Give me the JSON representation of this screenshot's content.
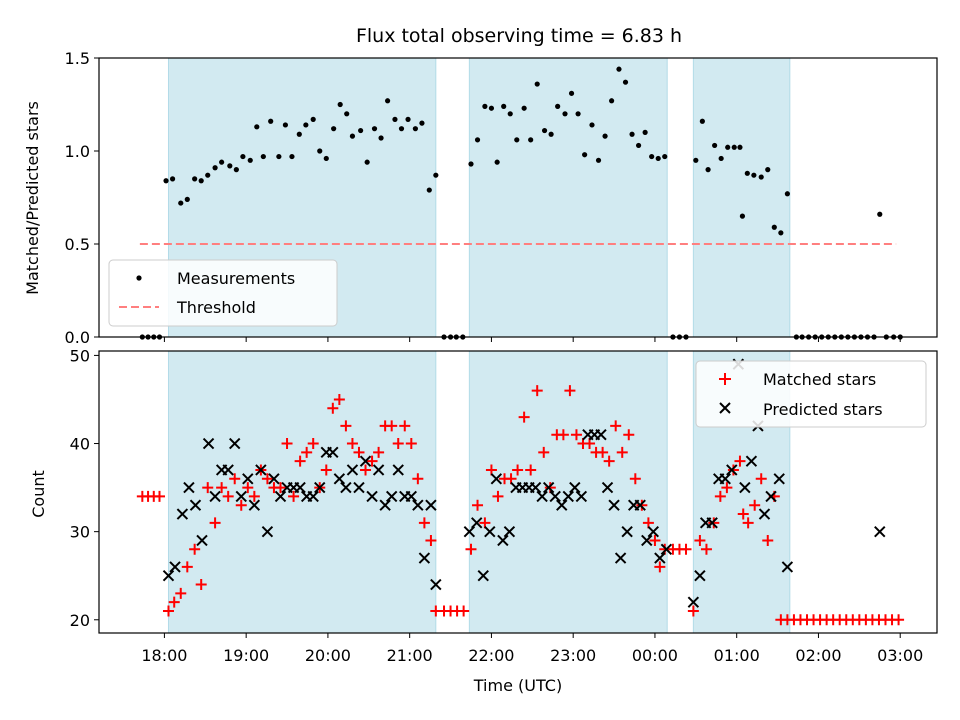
{
  "chart_data": {
    "type": "scatter",
    "title": "Flux total observing time = 6.83 h",
    "xlabel": "Time (UTC)",
    "x_ticks": [
      "18:00",
      "19:00",
      "20:00",
      "21:00",
      "22:00",
      "23:00",
      "00:00",
      "01:00",
      "02:00",
      "03:00"
    ],
    "x_ticks_hours": [
      18,
      19,
      20,
      21,
      22,
      23,
      24,
      25,
      26,
      27
    ],
    "xlim_hours": [
      17.2,
      27.45
    ],
    "shaded_intervals_hours": [
      [
        18.05,
        21.32
      ],
      [
        21.73,
        24.15
      ],
      [
        24.47,
        25.65
      ]
    ],
    "colors": {
      "shading": "#add8e6",
      "matched": "#ff0000",
      "predicted": "#000000",
      "threshold": "#ff7f7f",
      "measurements": "#000000"
    },
    "top": {
      "ylabel": "Matched/Predicted stars",
      "ylim": [
        0,
        1.5
      ],
      "y_ticks": [
        "0.0",
        "0.5",
        "1.0",
        "1.5"
      ],
      "y_tick_values": [
        0,
        0.5,
        1.0,
        1.5
      ],
      "threshold": {
        "value": 0.5,
        "x_range_hours": [
          17.7,
          26.95
        ]
      },
      "legend": [
        "Measurements",
        "Threshold"
      ],
      "legend_position": "lower left",
      "measurements": [
        [
          17.73,
          0
        ],
        [
          17.8,
          0
        ],
        [
          17.87,
          0
        ],
        [
          17.94,
          0
        ],
        [
          18.02,
          0.84
        ],
        [
          18.1,
          0.85
        ],
        [
          18.2,
          0.72
        ],
        [
          18.28,
          0.74
        ],
        [
          18.37,
          0.85
        ],
        [
          18.45,
          0.84
        ],
        [
          18.53,
          0.87
        ],
        [
          18.62,
          0.91
        ],
        [
          18.7,
          0.94
        ],
        [
          18.8,
          0.92
        ],
        [
          18.88,
          0.9
        ],
        [
          18.96,
          0.97
        ],
        [
          19.05,
          0.95
        ],
        [
          19.13,
          1.13
        ],
        [
          19.21,
          0.97
        ],
        [
          19.3,
          1.16
        ],
        [
          19.4,
          0.97
        ],
        [
          19.48,
          1.14
        ],
        [
          19.56,
          0.97
        ],
        [
          19.65,
          1.09
        ],
        [
          19.73,
          1.14
        ],
        [
          19.82,
          1.17
        ],
        [
          19.9,
          1.0
        ],
        [
          19.98,
          0.96
        ],
        [
          20.07,
          1.12
        ],
        [
          20.15,
          1.25
        ],
        [
          20.23,
          1.2
        ],
        [
          20.3,
          1.08
        ],
        [
          20.4,
          1.11
        ],
        [
          20.48,
          0.94
        ],
        [
          20.57,
          1.12
        ],
        [
          20.65,
          1.07
        ],
        [
          20.73,
          1.27
        ],
        [
          20.82,
          1.17
        ],
        [
          20.9,
          1.12
        ],
        [
          20.98,
          1.17
        ],
        [
          21.07,
          1.12
        ],
        [
          21.15,
          1.15
        ],
        [
          21.24,
          0.79
        ],
        [
          21.32,
          0.87
        ],
        [
          21.42,
          0
        ],
        [
          21.5,
          0
        ],
        [
          21.57,
          0
        ],
        [
          21.65,
          0
        ],
        [
          21.75,
          0.93
        ],
        [
          21.83,
          1.06
        ],
        [
          21.92,
          1.24
        ],
        [
          22.0,
          1.23
        ],
        [
          22.07,
          0.94
        ],
        [
          22.15,
          1.24
        ],
        [
          22.23,
          1.2
        ],
        [
          22.31,
          1.06
        ],
        [
          22.4,
          1.23
        ],
        [
          22.48,
          1.06
        ],
        [
          22.56,
          1.36
        ],
        [
          22.65,
          1.11
        ],
        [
          22.73,
          1.09
        ],
        [
          22.81,
          1.24
        ],
        [
          22.9,
          1.2
        ],
        [
          22.98,
          1.31
        ],
        [
          23.06,
          1.2
        ],
        [
          23.14,
          0.98
        ],
        [
          23.23,
          1.14
        ],
        [
          23.31,
          0.95
        ],
        [
          23.39,
          1.08
        ],
        [
          23.47,
          1.27
        ],
        [
          23.56,
          1.44
        ],
        [
          23.64,
          1.37
        ],
        [
          23.72,
          1.09
        ],
        [
          23.8,
          1.03
        ],
        [
          23.88,
          1.1
        ],
        [
          23.96,
          0.97
        ],
        [
          24.04,
          0.96
        ],
        [
          24.12,
          0.97
        ],
        [
          24.22,
          0
        ],
        [
          24.3,
          0
        ],
        [
          24.38,
          0
        ],
        [
          24.5,
          0.95
        ],
        [
          24.58,
          1.16
        ],
        [
          24.65,
          0.9
        ],
        [
          24.73,
          1.03
        ],
        [
          24.81,
          0.96
        ],
        [
          24.89,
          1.02
        ],
        [
          24.97,
          1.02
        ],
        [
          25.04,
          1.02
        ],
        [
          25.07,
          0.65
        ],
        [
          25.13,
          0.88
        ],
        [
          25.21,
          0.87
        ],
        [
          25.3,
          0.86
        ],
        [
          25.38,
          0.9
        ],
        [
          25.46,
          0.59
        ],
        [
          25.54,
          0.56
        ],
        [
          25.62,
          0.77
        ],
        [
          25.73,
          0
        ],
        [
          25.8,
          0
        ],
        [
          25.88,
          0
        ],
        [
          25.96,
          0
        ],
        [
          26.04,
          0
        ],
        [
          26.12,
          0
        ],
        [
          26.2,
          0
        ],
        [
          26.28,
          0
        ],
        [
          26.36,
          0
        ],
        [
          26.44,
          0
        ],
        [
          26.52,
          0
        ],
        [
          26.6,
          0
        ],
        [
          26.68,
          0
        ],
        [
          26.75,
          0.66
        ],
        [
          26.83,
          0
        ],
        [
          26.92,
          0
        ],
        [
          27.0,
          0
        ]
      ]
    },
    "bottom": {
      "ylabel": "Count",
      "ylim": [
        18.5,
        50.5
      ],
      "y_ticks": [
        "20",
        "30",
        "40",
        "50"
      ],
      "y_tick_values": [
        20,
        30,
        40,
        50
      ],
      "legend": [
        "Matched stars",
        "Predicted stars"
      ],
      "legend_position": "upper right",
      "matched": [
        [
          17.73,
          34
        ],
        [
          17.8,
          34
        ],
        [
          17.87,
          34
        ],
        [
          17.94,
          34
        ],
        [
          18.05,
          21
        ],
        [
          18.12,
          22
        ],
        [
          18.2,
          23
        ],
        [
          18.28,
          26
        ],
        [
          18.37,
          28
        ],
        [
          18.45,
          24
        ],
        [
          18.53,
          35
        ],
        [
          18.62,
          31
        ],
        [
          18.7,
          35
        ],
        [
          18.78,
          34
        ],
        [
          18.86,
          36
        ],
        [
          18.94,
          33
        ],
        [
          19.02,
          35
        ],
        [
          19.1,
          34
        ],
        [
          19.18,
          37
        ],
        [
          19.26,
          36
        ],
        [
          19.34,
          35
        ],
        [
          19.42,
          35
        ],
        [
          19.5,
          40
        ],
        [
          19.58,
          34
        ],
        [
          19.66,
          38
        ],
        [
          19.74,
          39
        ],
        [
          19.82,
          40
        ],
        [
          19.9,
          35
        ],
        [
          19.98,
          37
        ],
        [
          20.06,
          44
        ],
        [
          20.14,
          45
        ],
        [
          20.22,
          42
        ],
        [
          20.3,
          40
        ],
        [
          20.38,
          39
        ],
        [
          20.46,
          37
        ],
        [
          20.54,
          38
        ],
        [
          20.62,
          39
        ],
        [
          20.7,
          42
        ],
        [
          20.78,
          42
        ],
        [
          20.86,
          40
        ],
        [
          20.94,
          42
        ],
        [
          21.02,
          40
        ],
        [
          21.1,
          36
        ],
        [
          21.18,
          31
        ],
        [
          21.26,
          29
        ],
        [
          21.32,
          21
        ],
        [
          21.42,
          21
        ],
        [
          21.5,
          21
        ],
        [
          21.58,
          21
        ],
        [
          21.66,
          21
        ],
        [
          21.75,
          28
        ],
        [
          21.83,
          33
        ],
        [
          21.92,
          31
        ],
        [
          22.0,
          37
        ],
        [
          22.08,
          34
        ],
        [
          22.16,
          36
        ],
        [
          22.24,
          36
        ],
        [
          22.32,
          37
        ],
        [
          22.4,
          43
        ],
        [
          22.48,
          37
        ],
        [
          22.56,
          46
        ],
        [
          22.64,
          39
        ],
        [
          22.72,
          35
        ],
        [
          22.8,
          41
        ],
        [
          22.88,
          41
        ],
        [
          22.96,
          46
        ],
        [
          23.04,
          41
        ],
        [
          23.12,
          40
        ],
        [
          23.2,
          40
        ],
        [
          23.28,
          39
        ],
        [
          23.36,
          39
        ],
        [
          23.44,
          38
        ],
        [
          23.52,
          42
        ],
        [
          23.6,
          39
        ],
        [
          23.68,
          41
        ],
        [
          23.76,
          36
        ],
        [
          23.84,
          33
        ],
        [
          23.92,
          31
        ],
        [
          24.0,
          29
        ],
        [
          24.06,
          26
        ],
        [
          24.12,
          28
        ],
        [
          24.22,
          28
        ],
        [
          24.3,
          28
        ],
        [
          24.38,
          28
        ],
        [
          24.47,
          21
        ],
        [
          24.55,
          29
        ],
        [
          24.63,
          28
        ],
        [
          24.72,
          31
        ],
        [
          24.8,
          34
        ],
        [
          24.88,
          35
        ],
        [
          24.96,
          37
        ],
        [
          25.04,
          38
        ],
        [
          25.08,
          32
        ],
        [
          25.14,
          31
        ],
        [
          25.22,
          33
        ],
        [
          25.3,
          36
        ],
        [
          25.38,
          29
        ],
        [
          25.46,
          34
        ],
        [
          25.54,
          20
        ],
        [
          25.62,
          20
        ],
        [
          25.7,
          20
        ],
        [
          25.78,
          20
        ],
        [
          25.86,
          20
        ],
        [
          25.94,
          20
        ],
        [
          26.02,
          20
        ],
        [
          26.1,
          20
        ],
        [
          26.18,
          20
        ],
        [
          26.26,
          20
        ],
        [
          26.34,
          20
        ],
        [
          26.42,
          20
        ],
        [
          26.5,
          20
        ],
        [
          26.58,
          20
        ],
        [
          26.66,
          20
        ],
        [
          26.74,
          20
        ],
        [
          26.82,
          20
        ],
        [
          26.9,
          20
        ],
        [
          26.98,
          20
        ]
      ],
      "predicted": [
        [
          18.05,
          25
        ],
        [
          18.13,
          26
        ],
        [
          18.22,
          32
        ],
        [
          18.3,
          35
        ],
        [
          18.38,
          33
        ],
        [
          18.46,
          29
        ],
        [
          18.54,
          40
        ],
        [
          18.62,
          34
        ],
        [
          18.7,
          37
        ],
        [
          18.78,
          37
        ],
        [
          18.86,
          40
        ],
        [
          18.94,
          34
        ],
        [
          19.02,
          36
        ],
        [
          19.1,
          33
        ],
        [
          19.18,
          37
        ],
        [
          19.26,
          30
        ],
        [
          19.34,
          36
        ],
        [
          19.42,
          34
        ],
        [
          19.5,
          35
        ],
        [
          19.58,
          35
        ],
        [
          19.66,
          35
        ],
        [
          19.74,
          34
        ],
        [
          19.82,
          34
        ],
        [
          19.9,
          35
        ],
        [
          19.98,
          39
        ],
        [
          20.06,
          39
        ],
        [
          20.14,
          36
        ],
        [
          20.22,
          35
        ],
        [
          20.3,
          37
        ],
        [
          20.38,
          35
        ],
        [
          20.46,
          38
        ],
        [
          20.54,
          34
        ],
        [
          20.62,
          37
        ],
        [
          20.7,
          33
        ],
        [
          20.78,
          34
        ],
        [
          20.86,
          37
        ],
        [
          20.94,
          34
        ],
        [
          21.02,
          34
        ],
        [
          21.1,
          33
        ],
        [
          21.18,
          27
        ],
        [
          21.26,
          33
        ],
        [
          21.32,
          24
        ],
        [
          21.73,
          30
        ],
        [
          21.82,
          31
        ],
        [
          21.9,
          25
        ],
        [
          21.98,
          30
        ],
        [
          22.06,
          36
        ],
        [
          22.14,
          29
        ],
        [
          22.22,
          30
        ],
        [
          22.3,
          35
        ],
        [
          22.38,
          35
        ],
        [
          22.46,
          35
        ],
        [
          22.54,
          35
        ],
        [
          22.62,
          34
        ],
        [
          22.7,
          35
        ],
        [
          22.78,
          34
        ],
        [
          22.86,
          33
        ],
        [
          22.94,
          34
        ],
        [
          23.02,
          35
        ],
        [
          23.1,
          34
        ],
        [
          23.18,
          41
        ],
        [
          23.26,
          41
        ],
        [
          23.34,
          41
        ],
        [
          23.42,
          35
        ],
        [
          23.5,
          33
        ],
        [
          23.58,
          27
        ],
        [
          23.66,
          30
        ],
        [
          23.74,
          33
        ],
        [
          23.82,
          33
        ],
        [
          23.9,
          29
        ],
        [
          23.98,
          30
        ],
        [
          24.06,
          27
        ],
        [
          24.14,
          28
        ],
        [
          24.47,
          22
        ],
        [
          24.55,
          25
        ],
        [
          24.62,
          31
        ],
        [
          24.7,
          31
        ],
        [
          24.78,
          36
        ],
        [
          24.86,
          36
        ],
        [
          24.94,
          37
        ],
        [
          25.02,
          49
        ],
        [
          25.1,
          35
        ],
        [
          25.18,
          38
        ],
        [
          25.26,
          42
        ],
        [
          25.34,
          32
        ],
        [
          25.42,
          34
        ],
        [
          25.52,
          36
        ],
        [
          25.62,
          26
        ],
        [
          26.75,
          30
        ]
      ]
    }
  }
}
